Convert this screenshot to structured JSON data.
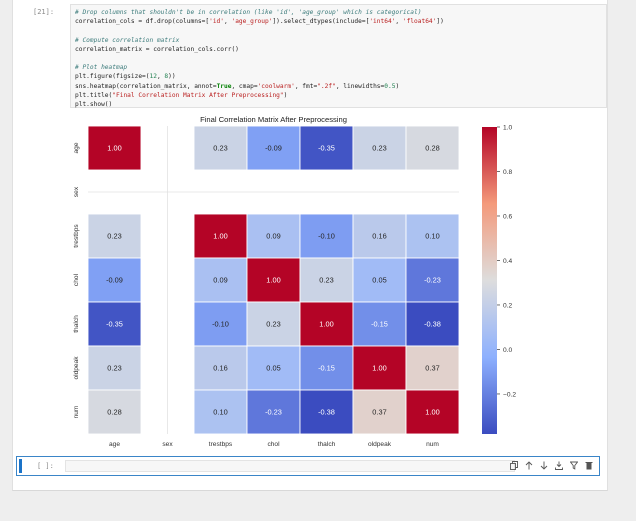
{
  "cell": {
    "prompt": "[21]:",
    "code": [
      [
        {
          "t": "comment",
          "v": "# Drop columns that shouldn't be in correlation (like 'id', 'age_group' which is categorical)"
        }
      ],
      [
        {
          "t": "plain",
          "v": "correlation_cols = df.drop(columns=["
        },
        {
          "t": "str",
          "v": "'id'"
        },
        {
          "t": "plain",
          "v": ", "
        },
        {
          "t": "str",
          "v": "'age_group'"
        },
        {
          "t": "plain",
          "v": "]).select_dtypes(include=["
        },
        {
          "t": "str",
          "v": "'int64'"
        },
        {
          "t": "plain",
          "v": ", "
        },
        {
          "t": "str",
          "v": "'float64'"
        },
        {
          "t": "plain",
          "v": "])"
        }
      ],
      [],
      [
        {
          "t": "comment",
          "v": "# Compute correlation matrix"
        }
      ],
      [
        {
          "t": "plain",
          "v": "correlation_matrix = correlation_cols.corr()"
        }
      ],
      [],
      [
        {
          "t": "comment",
          "v": "# Plot heatmap"
        }
      ],
      [
        {
          "t": "plain",
          "v": "plt.figure(figsize=("
        },
        {
          "t": "num",
          "v": "12"
        },
        {
          "t": "plain",
          "v": ", "
        },
        {
          "t": "num",
          "v": "8"
        },
        {
          "t": "plain",
          "v": "))"
        }
      ],
      [
        {
          "t": "plain",
          "v": "sns.heatmap(correlation_matrix, annot="
        },
        {
          "t": "kw",
          "v": "True"
        },
        {
          "t": "plain",
          "v": ", cmap="
        },
        {
          "t": "str",
          "v": "'coolwarm'"
        },
        {
          "t": "plain",
          "v": ", fmt="
        },
        {
          "t": "str",
          "v": "\".2f\""
        },
        {
          "t": "plain",
          "v": ", linewidths="
        },
        {
          "t": "num",
          "v": "0.5"
        },
        {
          "t": "plain",
          "v": ")"
        }
      ],
      [
        {
          "t": "plain",
          "v": "plt.title("
        },
        {
          "t": "str",
          "v": "\"Final Correlation Matrix After Preprocessing\""
        },
        {
          "t": "plain",
          "v": ")"
        }
      ],
      [
        {
          "t": "plain",
          "v": "plt.show()"
        }
      ]
    ]
  },
  "chart_data": {
    "type": "heatmap",
    "title": "Final Correlation Matrix After Preprocessing",
    "xlabel": "",
    "ylabel": "",
    "labels": [
      "age",
      "sex",
      "trestbps",
      "chol",
      "thalch",
      "oldpeak",
      "num"
    ],
    "values": [
      [
        1.0,
        null,
        0.23,
        -0.09,
        -0.35,
        0.23,
        0.28
      ],
      [
        null,
        null,
        null,
        null,
        null,
        null,
        null
      ],
      [
        0.23,
        null,
        1.0,
        0.09,
        -0.1,
        0.16,
        0.1
      ],
      [
        -0.09,
        null,
        0.09,
        1.0,
        0.23,
        0.05,
        -0.23
      ],
      [
        -0.35,
        null,
        -0.1,
        0.23,
        1.0,
        -0.15,
        -0.38
      ],
      [
        0.23,
        null,
        0.16,
        0.05,
        -0.15,
        1.0,
        0.37
      ],
      [
        0.28,
        null,
        0.1,
        -0.23,
        -0.38,
        0.37,
        1.0
      ]
    ],
    "cell_labels": [
      [
        "1.00",
        "",
        "0.23",
        "-0.09",
        "-0.35",
        "0.23",
        "0.28"
      ],
      [
        "",
        "",
        "",
        "",
        "",
        "",
        ""
      ],
      [
        "0.23",
        "",
        "1.00",
        "0.09",
        "-0.10",
        "0.16",
        "0.10"
      ],
      [
        "-0.09",
        "",
        "0.09",
        "1.00",
        "0.23",
        "0.05",
        "-0.23"
      ],
      [
        "-0.35",
        "",
        "-0.10",
        "0.23",
        "1.00",
        "-0.15",
        "-0.38"
      ],
      [
        "0.23",
        "",
        "0.16",
        "0.05",
        "-0.15",
        "1.00",
        "0.37"
      ],
      [
        "0.28",
        "",
        "0.10",
        "-0.23",
        "-0.38",
        "0.37",
        "1.00"
      ]
    ],
    "colormap": "coolwarm",
    "vmin": -0.38,
    "vmax": 1.0,
    "colorbar_ticks": [
      1.0,
      0.8,
      0.6,
      0.4,
      0.2,
      0.0,
      -0.2
    ],
    "colorbar_tick_labels": [
      "1.0",
      "0.8",
      "0.6",
      "0.4",
      "0.2",
      "0.0",
      "−0.2"
    ],
    "grid": false
  },
  "next_cell": {
    "prompt": "[ ]:",
    "toolbar_icons": [
      "copy-icon",
      "move-up-icon",
      "move-down-icon",
      "download-icon",
      "filter-icon",
      "delete-icon"
    ]
  },
  "colors": {
    "accent": "#1a73c8",
    "coolwarm_low": "#3b4cc0",
    "coolwarm_mid": "#dddddd",
    "coolwarm_high": "#b40426"
  }
}
